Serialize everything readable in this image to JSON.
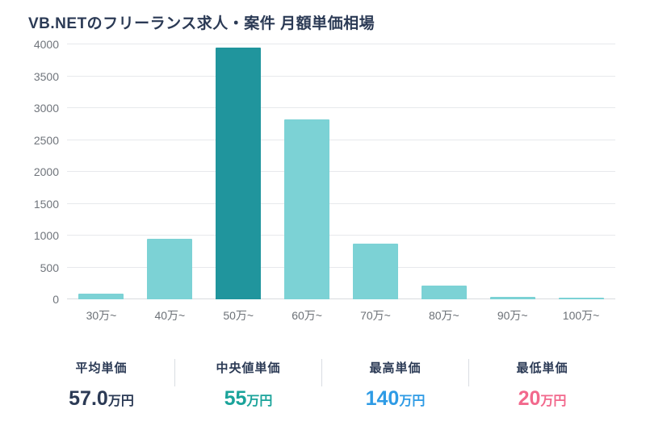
{
  "title": "VB.NETのフリーランス求人・案件 月額単価相場",
  "chart_data": {
    "type": "bar",
    "title": "VB.NETのフリーランス求人・案件 月額単価相場",
    "categories": [
      "30万~",
      "40万~",
      "50万~",
      "60万~",
      "70万~",
      "80万~",
      "90万~",
      "100万~"
    ],
    "values": [
      90,
      950,
      3950,
      2820,
      870,
      215,
      40,
      20
    ],
    "highlight_index": 2,
    "bar_color": "#7cd2d5",
    "highlight_color": "#20959d",
    "xlabel": "",
    "ylabel": "",
    "ylim": [
      0,
      4000
    ],
    "yticks": [
      0,
      500,
      1000,
      1500,
      2000,
      2500,
      3000,
      3500,
      4000
    ],
    "grid": true,
    "legend": "none"
  },
  "stats": [
    {
      "label": "平均単価",
      "value": "57.0",
      "unit": "万円",
      "color": "#2b3a55"
    },
    {
      "label": "中央値単価",
      "value": "55",
      "unit": "万円",
      "color": "#1aa39a"
    },
    {
      "label": "最高単価",
      "value": "140",
      "unit": "万円",
      "color": "#2e9be5"
    },
    {
      "label": "最低単価",
      "value": "20",
      "unit": "万円",
      "color": "#f2688c"
    }
  ]
}
